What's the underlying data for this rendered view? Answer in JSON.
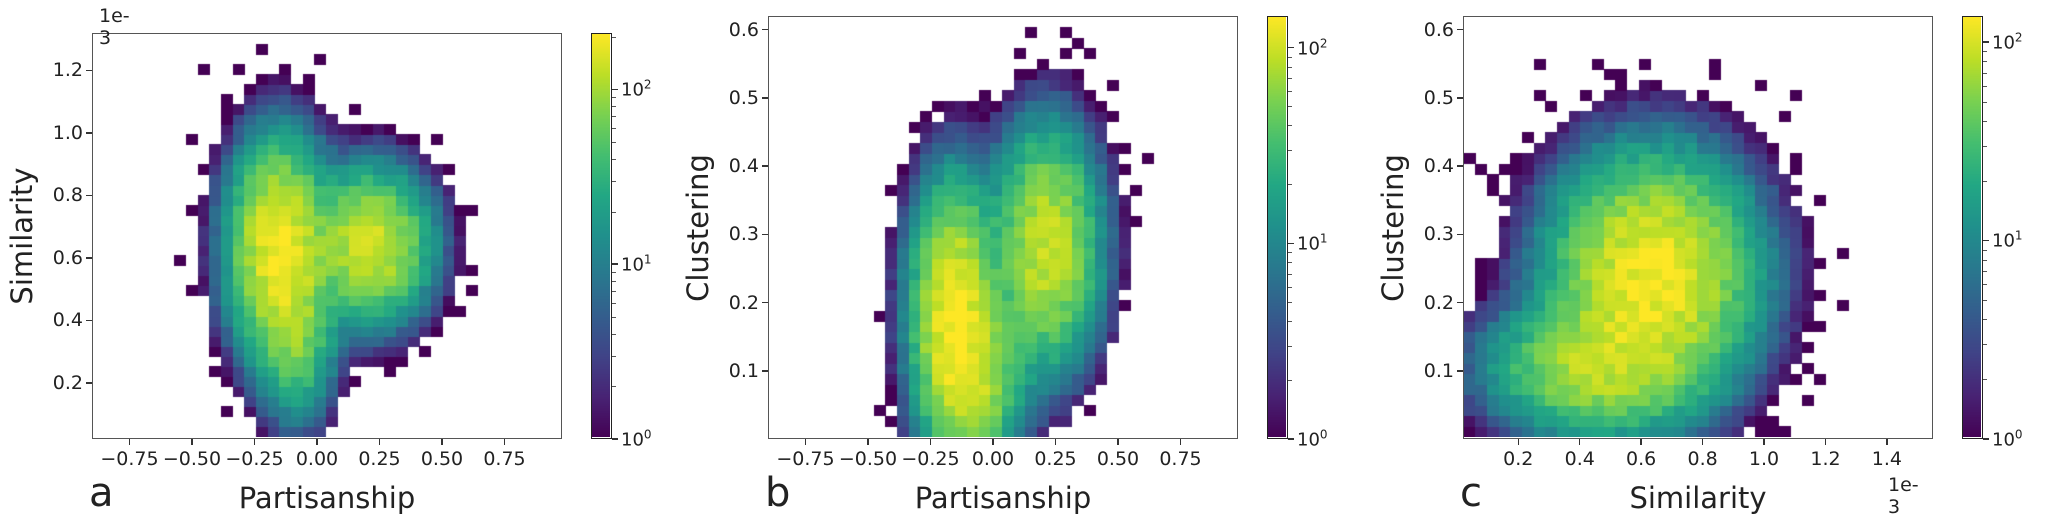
{
  "chart_data": [
    {
      "type": "heatmap",
      "panel_label": "a",
      "title": "",
      "xlabel": "Partisanship",
      "ylabel": "Similarity",
      "y_offset_text": "1e-3",
      "xlim": [
        -0.9,
        0.98
      ],
      "ylim": [
        0.02,
        1.32
      ],
      "xticks": [
        -0.75,
        -0.5,
        -0.25,
        0.0,
        0.25,
        0.5,
        0.75
      ],
      "xtick_labels": [
        "−0.75",
        "−0.50",
        "−0.25",
        "0.00",
        "0.25",
        "0.50",
        "0.75"
      ],
      "yticks": [
        0.2,
        0.4,
        0.6,
        0.8,
        1.0,
        1.2
      ],
      "ytick_labels": [
        "0.2",
        "0.4",
        "0.6",
        "0.8",
        "1.0",
        "1.2"
      ],
      "bins": [
        40,
        40
      ],
      "colormap": "viridis",
      "color_scale": "log",
      "colorbar": {
        "min": 1,
        "max": 210,
        "ticks": [
          1,
          10,
          100
        ],
        "tick_labels": [
          "10",
          "10",
          "10"
        ],
        "tick_exponents": [
          "0",
          "1",
          "2"
        ]
      },
      "density_modes": [
        {
          "x": -0.15,
          "y": 0.63,
          "sx": 0.1,
          "sy": 0.17,
          "peak": 200
        },
        {
          "x": 0.22,
          "y": 0.64,
          "sx": 0.12,
          "sy": 0.12,
          "peak": 150
        },
        {
          "x": -0.08,
          "y": 0.35,
          "sx": 0.08,
          "sy": 0.14,
          "peak": 60
        }
      ],
      "grid": false
    },
    {
      "type": "heatmap",
      "panel_label": "b",
      "title": "",
      "xlabel": "Partisanship",
      "ylabel": "Clustering",
      "xlim": [
        -0.9,
        0.98
      ],
      "ylim": [
        0.0,
        0.62
      ],
      "xticks": [
        -0.75,
        -0.5,
        -0.25,
        0.0,
        0.25,
        0.5,
        0.75
      ],
      "xtick_labels": [
        "−0.75",
        "−0.50",
        "−0.25",
        "0.00",
        "0.25",
        "0.50",
        "0.75"
      ],
      "yticks": [
        0.1,
        0.2,
        0.3,
        0.4,
        0.5,
        0.6
      ],
      "ytick_labels": [
        "0.1",
        "0.2",
        "0.3",
        "0.4",
        "0.5",
        "0.6"
      ],
      "bins": [
        40,
        40
      ],
      "colormap": "viridis",
      "color_scale": "log",
      "colorbar": {
        "min": 1,
        "max": 145,
        "ticks": [
          1,
          10,
          100
        ],
        "tick_labels": [
          "10",
          "10",
          "10"
        ],
        "tick_exponents": [
          "0",
          "1",
          "2"
        ]
      },
      "density_modes": [
        {
          "x": -0.15,
          "y": 0.18,
          "sx": 0.09,
          "sy": 0.1,
          "peak": 140
        },
        {
          "x": 0.22,
          "y": 0.28,
          "sx": 0.11,
          "sy": 0.09,
          "peak": 100
        },
        {
          "x": -0.05,
          "y": 0.08,
          "sx": 0.1,
          "sy": 0.06,
          "peak": 60
        }
      ],
      "grid": false
    },
    {
      "type": "heatmap",
      "panel_label": "c",
      "title": "",
      "xlabel": "Similarity",
      "ylabel": "Clustering",
      "x_offset_text": "1e-3",
      "xlim": [
        0.02,
        1.55
      ],
      "ylim": [
        0.0,
        0.62
      ],
      "xticks": [
        0.2,
        0.4,
        0.6,
        0.8,
        1.0,
        1.2,
        1.4
      ],
      "xtick_labels": [
        "0.2",
        "0.4",
        "0.6",
        "0.8",
        "1.0",
        "1.2",
        "1.4"
      ],
      "yticks": [
        0.1,
        0.2,
        0.3,
        0.4,
        0.5,
        0.6
      ],
      "ytick_labels": [
        "0.1",
        "0.2",
        "0.3",
        "0.4",
        "0.5",
        "0.6"
      ],
      "bins": [
        40,
        40
      ],
      "colormap": "viridis",
      "color_scale": "log",
      "colorbar": {
        "min": 1,
        "max": 135,
        "ticks": [
          1,
          10,
          100
        ],
        "tick_labels": [
          "10",
          "10",
          "10"
        ],
        "tick_exponents": [
          "0",
          "1",
          "2"
        ]
      },
      "density_modes": [
        {
          "x": 0.64,
          "y": 0.24,
          "sx": 0.17,
          "sy": 0.09,
          "peak": 130
        },
        {
          "x": 0.45,
          "y": 0.1,
          "sx": 0.18,
          "sy": 0.05,
          "peak": 70
        }
      ],
      "grid": false
    }
  ],
  "layout": {
    "panels": [
      {
        "frame": [
          92,
          33,
          470,
          406
        ],
        "cbar": [
          591,
          33,
          21,
          406
        ]
      },
      {
        "frame": [
          768,
          16,
          470,
          423
        ],
        "cbar": [
          1267,
          16,
          21,
          423
        ]
      },
      {
        "frame": [
          1463,
          16,
          470,
          423
        ],
        "cbar": [
          1962,
          16,
          21,
          423
        ]
      }
    ]
  }
}
